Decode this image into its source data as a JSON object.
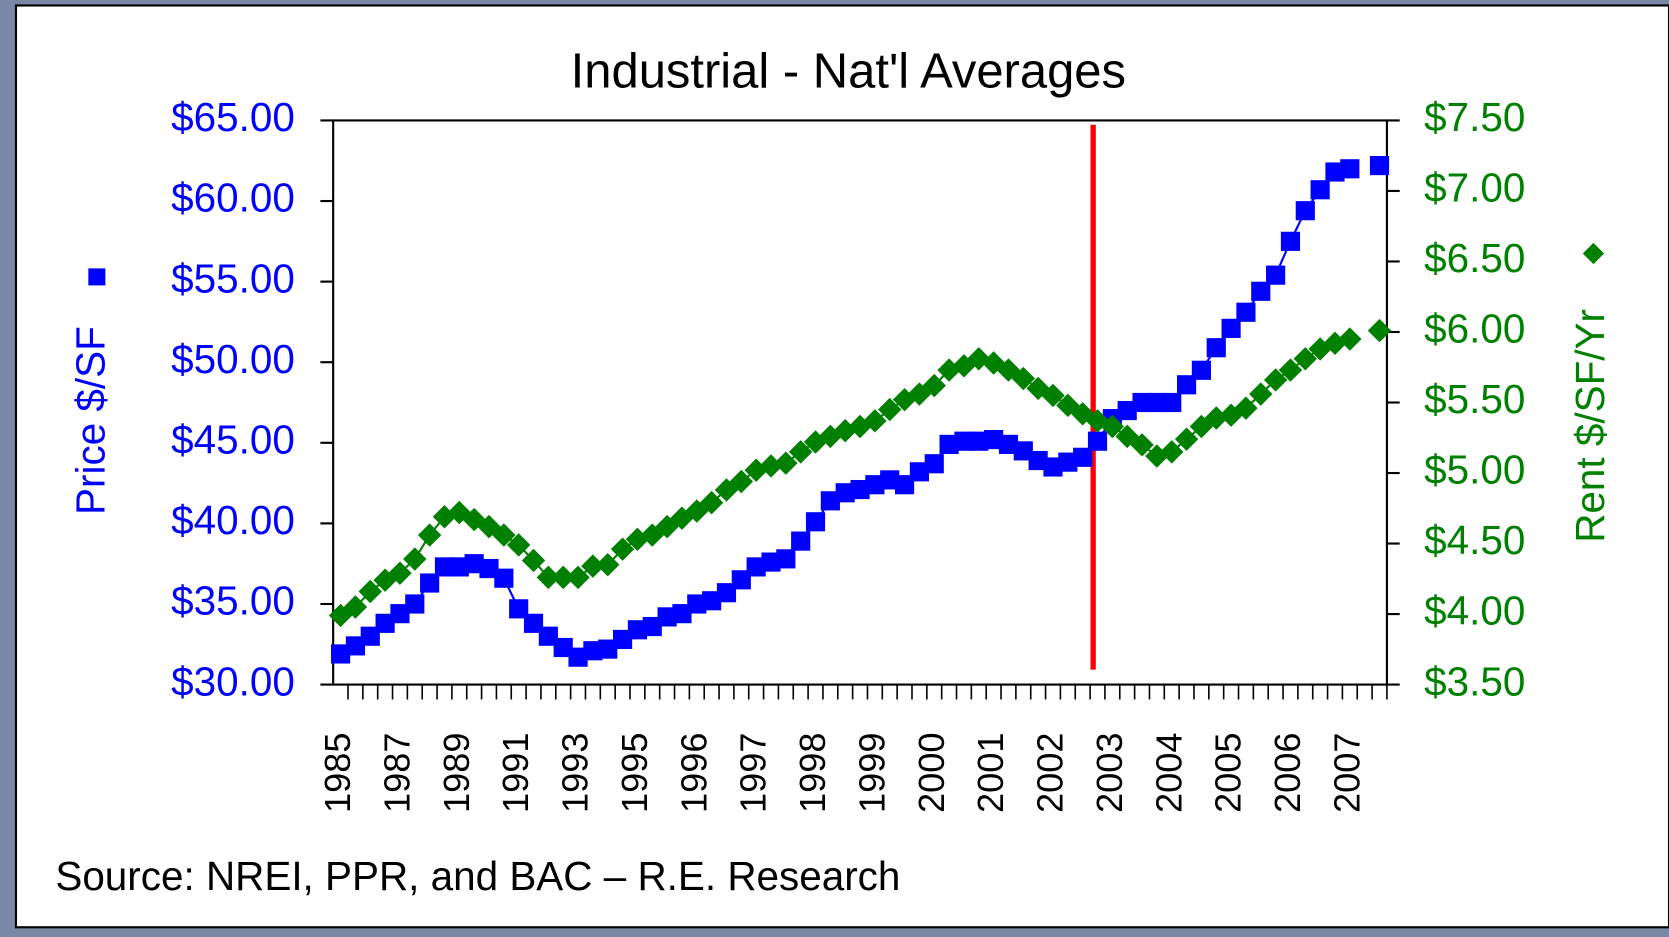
{
  "chart_data": {
    "type": "line",
    "title": "Industrial - Nat'l Averages",
    "source": "Source: NREI, PPR, and BAC – R.E. Research",
    "categories": [
      "1985",
      null,
      null,
      null,
      "1987",
      null,
      null,
      null,
      "1989",
      null,
      null,
      null,
      "1991",
      null,
      null,
      null,
      "1993",
      null,
      null,
      null,
      "1995",
      null,
      null,
      null,
      "1996",
      null,
      null,
      null,
      "1997",
      null,
      null,
      null,
      "1998",
      null,
      null,
      null,
      "1999",
      null,
      null,
      null,
      "2000",
      null,
      null,
      null,
      "2001",
      null,
      null,
      null,
      "2002",
      null,
      null,
      null,
      "2003",
      null,
      null,
      null,
      "2004",
      null,
      null,
      null,
      "2005",
      null,
      null,
      null,
      "2006",
      null,
      null,
      null,
      "2007",
      null,
      null
    ],
    "series": [
      {
        "name": "Price $/SF",
        "color": "#0000ff",
        "marker": "square",
        "values": [
          31.9,
          32.4,
          33.0,
          33.8,
          34.4,
          35.0,
          36.3,
          37.3,
          37.3,
          37.5,
          37.2,
          36.6,
          34.7,
          33.8,
          33.0,
          32.3,
          31.7,
          32.1,
          32.2,
          32.8,
          33.4,
          33.6,
          34.2,
          34.4,
          35.0,
          35.2,
          35.7,
          36.5,
          37.3,
          37.6,
          37.8,
          38.9,
          40.1,
          41.4,
          41.9,
          42.1,
          42.4,
          42.7,
          42.4,
          43.2,
          43.7,
          44.9,
          45.1,
          45.1,
          45.2,
          44.9,
          44.5,
          43.9,
          43.5,
          43.8,
          44.1,
          45.1,
          46.5,
          47.0,
          47.5,
          47.5,
          47.5,
          48.6,
          49.5,
          50.9,
          52.1,
          53.1,
          54.4,
          55.4,
          57.5,
          59.4,
          60.7,
          61.8,
          62.0,
          null,
          62.2
        ]
      },
      {
        "name": "Rent $/SF/Yr",
        "color": "#008000",
        "marker": "diamond",
        "axis": "y2",
        "values": [
          3.99,
          4.05,
          4.16,
          4.24,
          4.29,
          4.39,
          4.56,
          4.69,
          4.72,
          4.67,
          4.62,
          4.56,
          4.49,
          4.38,
          4.26,
          4.26,
          4.26,
          4.34,
          4.35,
          4.46,
          4.53,
          4.56,
          4.62,
          4.68,
          4.73,
          4.79,
          4.88,
          4.94,
          5.02,
          5.05,
          5.07,
          5.15,
          5.22,
          5.26,
          5.3,
          5.33,
          5.37,
          5.45,
          5.52,
          5.56,
          5.62,
          5.73,
          5.76,
          5.81,
          5.78,
          5.73,
          5.67,
          5.6,
          5.55,
          5.48,
          5.42,
          5.37,
          5.33,
          5.26,
          5.2,
          5.12,
          5.15,
          5.24,
          5.33,
          5.39,
          5.41,
          5.46,
          5.56,
          5.66,
          5.73,
          5.81,
          5.88,
          5.92,
          5.95,
          null,
          6.01
        ]
      }
    ],
    "ylim": [
      30,
      65
    ],
    "yticks": [
      {
        "value": 30,
        "label": "$30.00"
      },
      {
        "value": 35,
        "label": "$35.00"
      },
      {
        "value": 40,
        "label": "$40.00"
      },
      {
        "value": 45,
        "label": "$45.00"
      },
      {
        "value": 50,
        "label": "$50.00"
      },
      {
        "value": 55,
        "label": "$55.00"
      },
      {
        "value": 60,
        "label": "$60.00"
      },
      {
        "value": 65,
        "label": "$65.00"
      }
    ],
    "y2lim": [
      3.5,
      7.5
    ],
    "y2ticks": [
      {
        "value": 3.5,
        "label": "$3.50"
      },
      {
        "value": 4,
        "label": "$4.00"
      },
      {
        "value": 4.5,
        "label": "$4.50"
      },
      {
        "value": 5,
        "label": "$5.00"
      },
      {
        "value": 5.5,
        "label": "$5.50"
      },
      {
        "value": 6,
        "label": "$6.00"
      },
      {
        "value": 6.5,
        "label": "$6.50"
      },
      {
        "value": 7,
        "label": "$7.00"
      },
      {
        "value": 7.5,
        "label": "$7.50"
      }
    ]
  }
}
